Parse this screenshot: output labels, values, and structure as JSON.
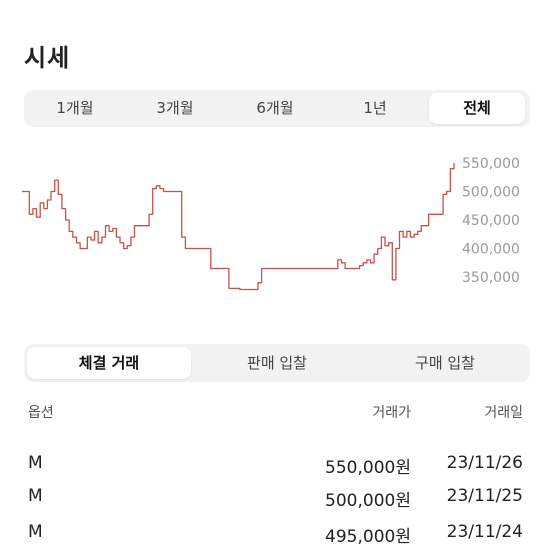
{
  "title": "시세",
  "period_tabs": [
    {
      "label": "1개월"
    },
    {
      "label": "3개월"
    },
    {
      "label": "6개월"
    },
    {
      "label": "1년"
    },
    {
      "label": "전체"
    }
  ],
  "period_selected": "전체",
  "trade_tabs": [
    {
      "label": "체결 거래"
    },
    {
      "label": "판매 입찰"
    },
    {
      "label": "구매 입찰"
    }
  ],
  "trade_selected": "체결 거래",
  "table": {
    "columns": [
      "옵션",
      "거래가",
      "거래일"
    ],
    "rows": [
      {
        "option": "M",
        "price": "550,000원",
        "date": "23/11/26"
      },
      {
        "option": "M",
        "price": "500,000원",
        "date": "23/11/25"
      },
      {
        "option": "M",
        "price": "495,000원",
        "date": "23/11/24"
      }
    ]
  },
  "colors": {
    "line": "#c8524a",
    "segment_bg": "#f2f2f2",
    "tick": "#9a9a9a"
  },
  "chart_data": {
    "type": "line",
    "title": "",
    "xlabel": "",
    "ylabel": "",
    "yticks": [
      "550,000",
      "500,000",
      "450,000",
      "400,000",
      "350,000"
    ],
    "ylim": [
      320000,
      560000
    ],
    "y_axis_position": "right",
    "grid": false,
    "series": [
      {
        "values": [
          500000,
          500000,
          460000,
          470000,
          455000,
          480000,
          470000,
          485000,
          500000,
          520000,
          495000,
          470000,
          450000,
          430000,
          420000,
          410000,
          400000,
          400000,
          420000,
          415000,
          430000,
          410000,
          420000,
          440000,
          430000,
          435000,
          420000,
          410000,
          400000,
          405000,
          420000,
          440000,
          440000,
          440000,
          440000,
          460000,
          505000,
          510000,
          505000,
          500000,
          500000,
          500000,
          500000,
          500000,
          420000,
          400000,
          400000,
          400000,
          400000,
          400000,
          400000,
          400000,
          365000,
          365000,
          365000,
          365000,
          365000,
          330000,
          330000,
          330000,
          328000,
          328000,
          328000,
          328000,
          328000,
          340000,
          365000,
          365000,
          365000,
          365000,
          365000,
          365000,
          365000,
          365000,
          365000,
          365000,
          365000,
          365000,
          365000,
          365000,
          365000,
          365000,
          365000,
          365000,
          365000,
          365000,
          365000,
          380000,
          375000,
          365000,
          365000,
          365000,
          365000,
          370000,
          375000,
          380000,
          375000,
          390000,
          400000,
          420000,
          405000,
          410000,
          345000,
          400000,
          430000,
          420000,
          430000,
          420000,
          425000,
          430000,
          440000,
          440000,
          460000,
          460000,
          460000,
          460000,
          495000,
          500000,
          540000,
          550000
        ]
      }
    ]
  }
}
